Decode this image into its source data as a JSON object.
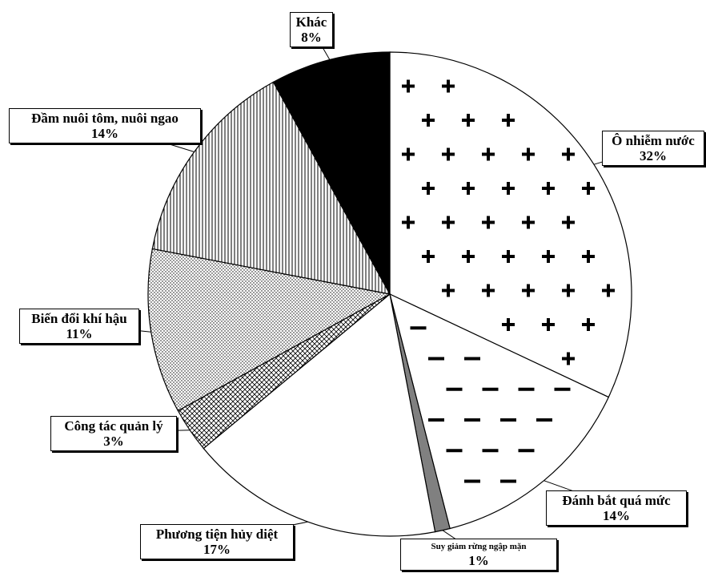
{
  "chart_data": {
    "type": "pie",
    "start_angle_deg": 0,
    "direction": "clockwise",
    "slices": [
      {
        "label": "Ô nhiễm nước",
        "value": 32,
        "pct_label": "32%",
        "pattern": "plus"
      },
      {
        "label": "Đánh bắt quá mức",
        "value": 14,
        "pct_label": "14%",
        "pattern": "minus"
      },
      {
        "label": "Suy giảm rừng ngập mặn",
        "value": 1,
        "pct_label": "1%",
        "pattern": "gray"
      },
      {
        "label": "Phương tiện hủy diệt",
        "value": 17,
        "pct_label": "17%",
        "pattern": "white"
      },
      {
        "label": "Công tác quản lý",
        "value": 3,
        "pct_label": "3%",
        "pattern": "crosshatch"
      },
      {
        "label": "Biến đổi khí hậu",
        "value": 11,
        "pct_label": "11%",
        "pattern": "dots"
      },
      {
        "label": "Đầm nuôi tôm, nuôi ngao",
        "value": 14,
        "pct_label": "14%",
        "pattern": "vlines"
      },
      {
        "label": "Khác",
        "value": 8,
        "pct_label": "8%",
        "pattern": "black"
      }
    ]
  }
}
